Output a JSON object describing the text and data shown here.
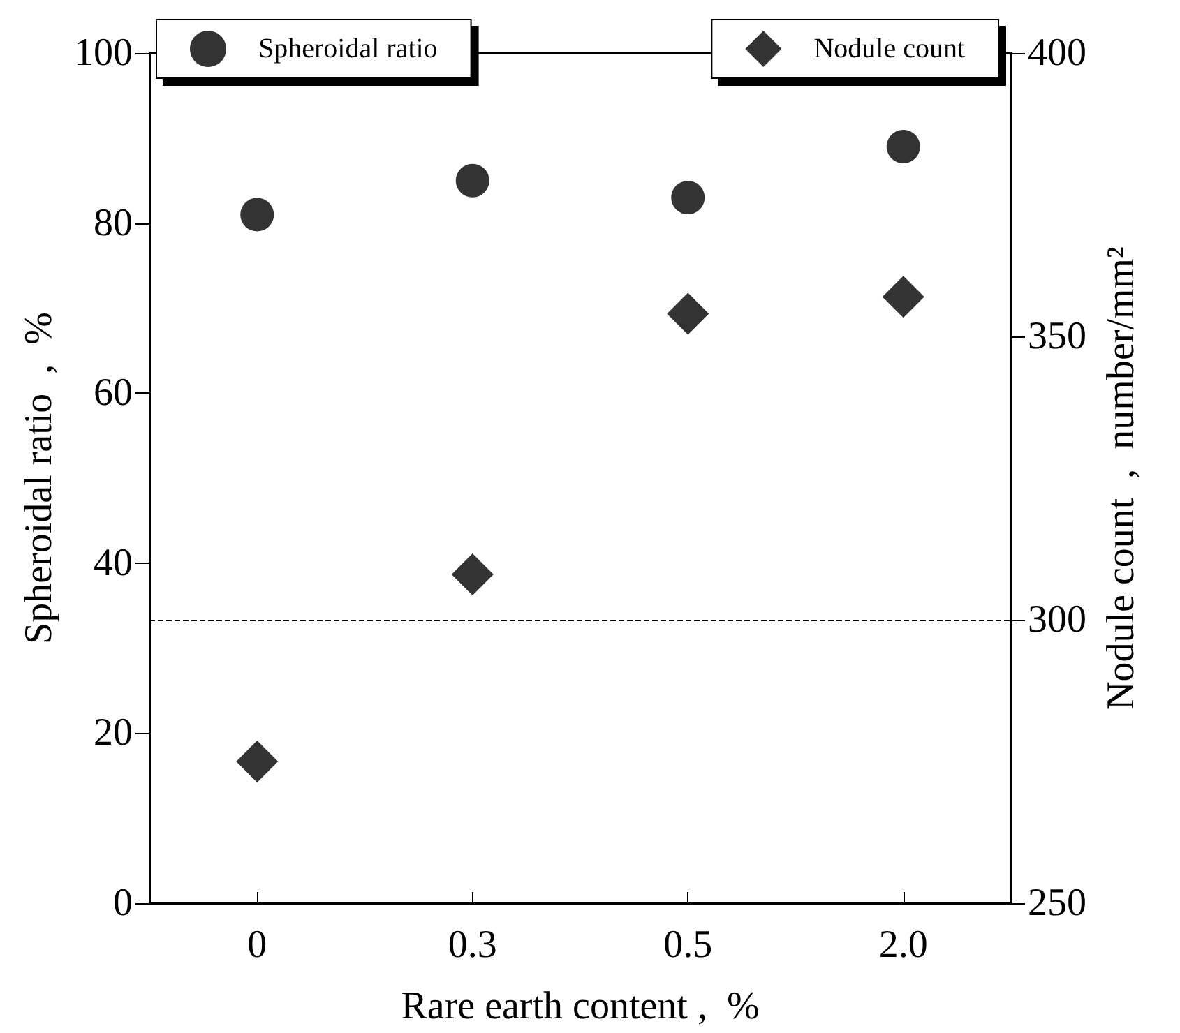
{
  "chart_data": {
    "type": "scatter",
    "xlabel": "Rare earth content ,  %",
    "ylabel": "Spheroidal ratio  ,  %",
    "y2label": "Nodule count  ,  number/mm²",
    "categories": [
      "0",
      "0.3",
      "0.5",
      "2.0"
    ],
    "series": [
      {
        "name": "Spheroidal ratio",
        "color": "#000000",
        "marker": "circle",
        "values": [
          81,
          85,
          83,
          89
        ]
      },
      {
        "name": "Nodule count",
        "color": "#000000",
        "marker": "diamond",
        "axis": "y2",
        "values": [
          275,
          308,
          354,
          357
        ]
      }
    ],
    "ylim": [
      0,
      100
    ],
    "yticks": [
      0,
      20,
      40,
      60,
      80,
      100
    ],
    "y2lim": [
      250,
      400
    ],
    "y2ticks": [
      250,
      300,
      350,
      400
    ],
    "ref_lines": [
      {
        "axis": "y2",
        "value": 300,
        "color": "#000000",
        "line_style": "dashed"
      }
    ],
    "legend": "top",
    "grid": false
  }
}
